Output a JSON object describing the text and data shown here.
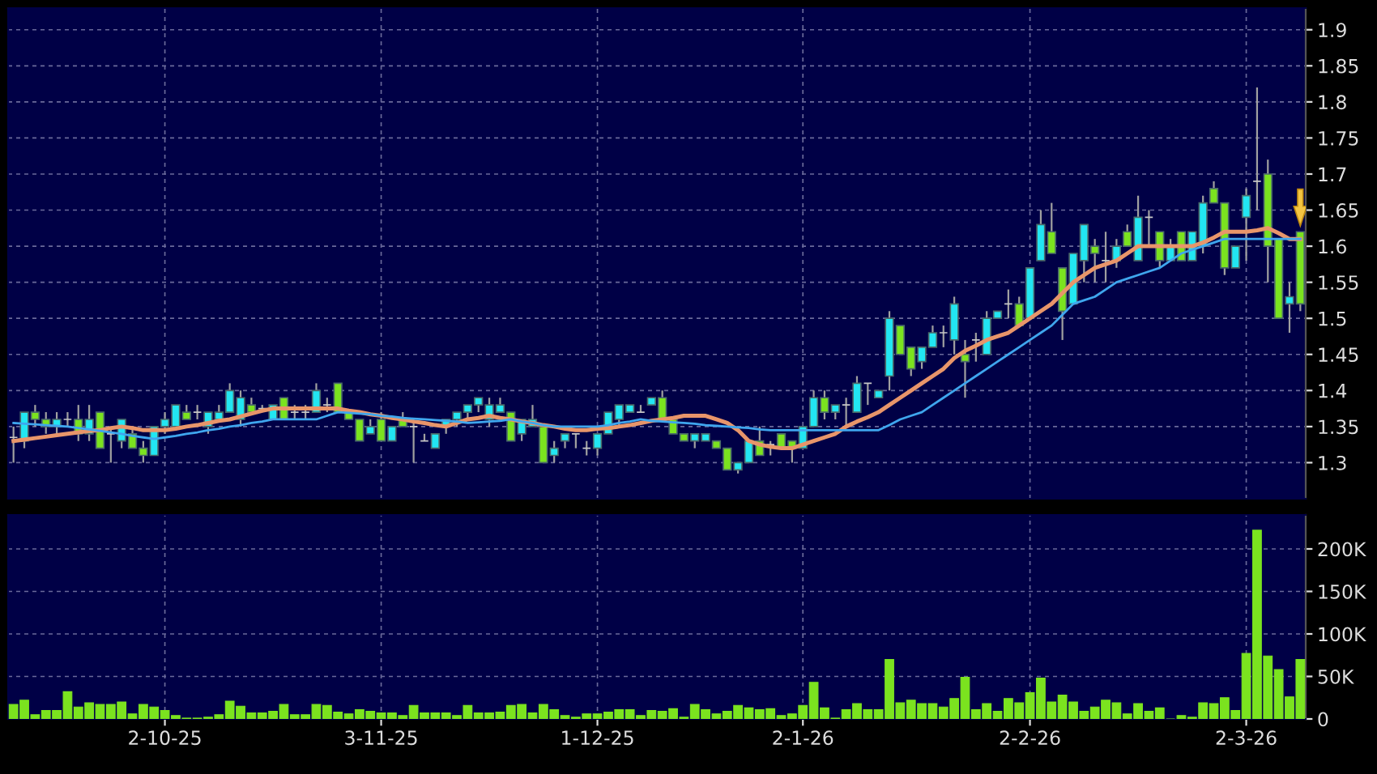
{
  "chart_data": [
    {
      "type": "candlestick",
      "categories": [
        null,
        null,
        null,
        null,
        null,
        null,
        null,
        null,
        null,
        null,
        null,
        null,
        null,
        null,
        null,
        null,
        null,
        null,
        null,
        null,
        null,
        null,
        null,
        null,
        null,
        null,
        null,
        null,
        null,
        null,
        null,
        null,
        null,
        null,
        null,
        null,
        null,
        null,
        null,
        null,
        null,
        null,
        null,
        null,
        null,
        null,
        null,
        null,
        null,
        null,
        null,
        null,
        null,
        null,
        null,
        null,
        null,
        null,
        null,
        null,
        null,
        null,
        null,
        null,
        null,
        null,
        null,
        null,
        null,
        null,
        null,
        null,
        null,
        null,
        null,
        null,
        null,
        null,
        null,
        null,
        null,
        null,
        null,
        null,
        null,
        null,
        null,
        null,
        null,
        null,
        null,
        null,
        null,
        null,
        null,
        null,
        null,
        null,
        null,
        null,
        null,
        null,
        null,
        null,
        null,
        null,
        null,
        null,
        null,
        null,
        null,
        null,
        null,
        null,
        null,
        null,
        null,
        null,
        null,
        null
      ],
      "tick_labels": "y",
      "ohlc": [
        [
          1.335,
          1.35,
          1.3,
          1.335
        ],
        [
          1.33,
          1.37,
          1.32,
          1.37
        ],
        [
          1.37,
          1.38,
          1.35,
          1.36
        ],
        [
          1.36,
          1.37,
          1.34,
          1.35
        ],
        [
          1.35,
          1.37,
          1.34,
          1.36
        ],
        [
          1.36,
          1.37,
          1.35,
          1.36
        ],
        [
          1.36,
          1.38,
          1.33,
          1.34
        ],
        [
          1.34,
          1.38,
          1.33,
          1.36
        ],
        [
          1.37,
          1.37,
          1.32,
          1.32
        ],
        [
          1.34,
          1.35,
          1.3,
          1.34
        ],
        [
          1.33,
          1.36,
          1.32,
          1.36
        ],
        [
          1.34,
          1.35,
          1.32,
          1.32
        ],
        [
          1.32,
          1.33,
          1.3,
          1.31
        ],
        [
          1.31,
          1.35,
          1.31,
          1.35
        ],
        [
          1.35,
          1.37,
          1.34,
          1.36
        ],
        [
          1.35,
          1.38,
          1.35,
          1.38
        ],
        [
          1.37,
          1.38,
          1.36,
          1.36
        ],
        [
          1.37,
          1.38,
          1.36,
          1.37
        ],
        [
          1.35,
          1.37,
          1.34,
          1.37
        ],
        [
          1.36,
          1.38,
          1.36,
          1.37
        ],
        [
          1.37,
          1.41,
          1.37,
          1.4
        ],
        [
          1.36,
          1.4,
          1.35,
          1.39
        ],
        [
          1.38,
          1.39,
          1.37,
          1.37
        ],
        [
          1.375,
          1.38,
          1.37,
          1.375
        ],
        [
          1.36,
          1.38,
          1.36,
          1.38
        ],
        [
          1.39,
          1.39,
          1.36,
          1.36
        ],
        [
          1.37,
          1.38,
          1.36,
          1.37
        ],
        [
          1.37,
          1.38,
          1.36,
          1.37
        ],
        [
          1.37,
          1.41,
          1.37,
          1.4
        ],
        [
          1.38,
          1.39,
          1.37,
          1.38
        ],
        [
          1.41,
          1.41,
          1.37,
          1.37
        ],
        [
          1.37,
          1.37,
          1.36,
          1.36
        ],
        [
          1.36,
          1.36,
          1.33,
          1.33
        ],
        [
          1.34,
          1.36,
          1.34,
          1.35
        ],
        [
          1.36,
          1.37,
          1.33,
          1.33
        ],
        [
          1.33,
          1.35,
          1.33,
          1.35
        ],
        [
          1.36,
          1.37,
          1.35,
          1.35
        ],
        [
          1.35,
          1.36,
          1.3,
          1.35
        ],
        [
          1.33,
          1.34,
          1.33,
          1.33
        ],
        [
          1.32,
          1.34,
          1.32,
          1.34
        ],
        [
          1.35,
          1.36,
          1.34,
          1.36
        ],
        [
          1.36,
          1.37,
          1.35,
          1.37
        ],
        [
          1.37,
          1.38,
          1.36,
          1.38
        ],
        [
          1.38,
          1.39,
          1.37,
          1.39
        ],
        [
          1.36,
          1.39,
          1.35,
          1.38
        ],
        [
          1.37,
          1.39,
          1.37,
          1.38
        ],
        [
          1.37,
          1.37,
          1.33,
          1.33
        ],
        [
          1.34,
          1.36,
          1.33,
          1.36
        ],
        [
          1.35,
          1.38,
          1.35,
          1.36
        ],
        [
          1.35,
          1.35,
          1.3,
          1.3
        ],
        [
          1.31,
          1.33,
          1.3,
          1.32
        ],
        [
          1.33,
          1.34,
          1.32,
          1.34
        ],
        [
          1.34,
          1.34,
          1.32,
          1.34
        ],
        [
          1.32,
          1.33,
          1.31,
          1.32
        ],
        [
          1.32,
          1.34,
          1.31,
          1.34
        ],
        [
          1.34,
          1.37,
          1.34,
          1.37
        ],
        [
          1.36,
          1.38,
          1.35,
          1.38
        ],
        [
          1.37,
          1.38,
          1.37,
          1.38
        ],
        [
          1.37,
          1.38,
          1.37,
          1.37
        ],
        [
          1.38,
          1.39,
          1.38,
          1.39
        ],
        [
          1.39,
          1.4,
          1.36,
          1.36
        ],
        [
          1.36,
          1.36,
          1.34,
          1.34
        ],
        [
          1.34,
          1.34,
          1.33,
          1.33
        ],
        [
          1.33,
          1.34,
          1.32,
          1.34
        ],
        [
          1.33,
          1.34,
          1.33,
          1.34
        ],
        [
          1.33,
          1.33,
          1.32,
          1.32
        ],
        [
          1.32,
          1.32,
          1.29,
          1.29
        ],
        [
          1.29,
          1.3,
          1.285,
          1.3
        ],
        [
          1.3,
          1.33,
          1.3,
          1.33
        ],
        [
          1.33,
          1.35,
          1.31,
          1.31
        ],
        [
          1.325,
          1.33,
          1.31,
          1.325
        ],
        [
          1.34,
          1.34,
          1.32,
          1.32
        ],
        [
          1.33,
          1.33,
          1.3,
          1.32
        ],
        [
          1.32,
          1.35,
          1.32,
          1.35
        ],
        [
          1.35,
          1.4,
          1.35,
          1.39
        ],
        [
          1.39,
          1.4,
          1.36,
          1.37
        ],
        [
          1.37,
          1.38,
          1.36,
          1.38
        ],
        [
          1.38,
          1.39,
          1.35,
          1.38
        ],
        [
          1.37,
          1.42,
          1.37,
          1.41
        ],
        [
          1.41,
          1.41,
          1.38,
          1.41
        ],
        [
          1.39,
          1.4,
          1.39,
          1.4
        ],
        [
          1.42,
          1.51,
          1.4,
          1.5
        ],
        [
          1.49,
          1.49,
          1.45,
          1.45
        ],
        [
          1.46,
          1.46,
          1.42,
          1.43
        ],
        [
          1.44,
          1.46,
          1.43,
          1.46
        ],
        [
          1.46,
          1.49,
          1.46,
          1.48
        ],
        [
          1.48,
          1.49,
          1.46,
          1.48
        ],
        [
          1.47,
          1.53,
          1.45,
          1.52
        ],
        [
          1.45,
          1.47,
          1.39,
          1.44
        ],
        [
          1.47,
          1.48,
          1.44,
          1.47
        ],
        [
          1.45,
          1.51,
          1.45,
          1.5
        ],
        [
          1.5,
          1.51,
          1.5,
          1.51
        ],
        [
          1.52,
          1.54,
          1.5,
          1.52
        ],
        [
          1.52,
          1.53,
          1.49,
          1.49
        ],
        [
          1.5,
          1.57,
          1.5,
          1.57
        ],
        [
          1.58,
          1.65,
          1.58,
          1.63
        ],
        [
          1.62,
          1.66,
          1.59,
          1.59
        ],
        [
          1.57,
          1.57,
          1.47,
          1.51
        ],
        [
          1.52,
          1.59,
          1.52,
          1.59
        ],
        [
          1.58,
          1.63,
          1.55,
          1.63
        ],
        [
          1.6,
          1.61,
          1.55,
          1.59
        ],
        [
          1.58,
          1.62,
          1.55,
          1.58
        ],
        [
          1.58,
          1.61,
          1.57,
          1.6
        ],
        [
          1.62,
          1.63,
          1.6,
          1.6
        ],
        [
          1.58,
          1.67,
          1.58,
          1.64
        ],
        [
          1.64,
          1.65,
          1.6,
          1.64
        ],
        [
          1.62,
          1.62,
          1.57,
          1.58
        ],
        [
          1.58,
          1.61,
          1.58,
          1.6
        ],
        [
          1.62,
          1.62,
          1.58,
          1.58
        ],
        [
          1.58,
          1.62,
          1.58,
          1.62
        ],
        [
          1.6,
          1.67,
          1.59,
          1.66
        ],
        [
          1.68,
          1.69,
          1.66,
          1.66
        ],
        [
          1.66,
          1.66,
          1.56,
          1.57
        ],
        [
          1.57,
          1.6,
          1.57,
          1.6
        ],
        [
          1.64,
          1.68,
          1.58,
          1.67
        ],
        [
          1.69,
          1.82,
          1.65,
          1.69
        ],
        [
          1.7,
          1.72,
          1.55,
          1.6
        ],
        [
          1.61,
          1.61,
          1.5,
          1.5
        ],
        [
          1.52,
          1.55,
          1.48,
          1.53
        ],
        [
          1.62,
          1.62,
          1.51,
          1.52
        ]
      ],
      "colors": [
        "#c8c8c8",
        "#22e6f2",
        "#7be31f",
        "#7be31f",
        "#22e6f2",
        "#c8c8c8",
        "#7be31f",
        "#22e6f2",
        "#7be31f",
        "#c8c8c8",
        "#22e6f2",
        "#7be31f",
        "#7be31f",
        "#22e6f2",
        "#22e6f2",
        "#22e6f2",
        "#7be31f",
        "#c8c8c8",
        "#22e6f2",
        "#22e6f2",
        "#22e6f2",
        "#22e6f2",
        "#7be31f",
        "#c8c8c8",
        "#22e6f2",
        "#7be31f",
        "#c8c8c8",
        "#c8c8c8",
        "#22e6f2",
        "#c8c8c8",
        "#7be31f",
        "#7be31f",
        "#7be31f",
        "#22e6f2",
        "#7be31f",
        "#22e6f2",
        "#7be31f",
        "#c8c8c8",
        "#c8c8c8",
        "#22e6f2",
        "#22e6f2",
        "#22e6f2",
        "#22e6f2",
        "#22e6f2",
        "#22e6f2",
        "#22e6f2",
        "#7be31f",
        "#22e6f2",
        "#22e6f2",
        "#7be31f",
        "#22e6f2",
        "#22e6f2",
        "#c8c8c8",
        "#c8c8c8",
        "#22e6f2",
        "#22e6f2",
        "#22e6f2",
        "#22e6f2",
        "#c8c8c8",
        "#22e6f2",
        "#7be31f",
        "#7be31f",
        "#7be31f",
        "#22e6f2",
        "#22e6f2",
        "#7be31f",
        "#7be31f",
        "#22e6f2",
        "#22e6f2",
        "#7be31f",
        "#c8c8c8",
        "#7be31f",
        "#7be31f",
        "#22e6f2",
        "#22e6f2",
        "#7be31f",
        "#22e6f2",
        "#c8c8c8",
        "#22e6f2",
        "#c8c8c8",
        "#22e6f2",
        "#22e6f2",
        "#7be31f",
        "#7be31f",
        "#22e6f2",
        "#22e6f2",
        "#c8c8c8",
        "#22e6f2",
        "#7be31f",
        "#c8c8c8",
        "#22e6f2",
        "#22e6f2",
        "#c8c8c8",
        "#7be31f",
        "#22e6f2",
        "#22e6f2",
        "#7be31f",
        "#7be31f",
        "#22e6f2",
        "#22e6f2",
        "#7be31f",
        "#c8c8c8",
        "#22e6f2",
        "#7be31f",
        "#22e6f2",
        "#c8c8c8",
        "#7be31f",
        "#22e6f2",
        "#7be31f",
        "#22e6f2",
        "#22e6f2",
        "#7be31f",
        "#7be31f",
        "#22e6f2",
        "#22e6f2",
        "#c8c8c8",
        "#7be31f",
        "#7be31f",
        "#22e6f2",
        "#7be31f"
      ],
      "series": [
        {
          "type": "line",
          "color": "#e8956a",
          "values": [
            1.33,
            1.332,
            1.334,
            1.336,
            1.338,
            1.34,
            1.342,
            1.344,
            1.345,
            1.348,
            1.35,
            1.348,
            1.345,
            1.345,
            1.345,
            1.347,
            1.35,
            1.352,
            1.355,
            1.358,
            1.36,
            1.364,
            1.368,
            1.372,
            1.375,
            1.375,
            1.375,
            1.375,
            1.375,
            1.375,
            1.375,
            1.372,
            1.37,
            1.367,
            1.365,
            1.362,
            1.36,
            1.357,
            1.355,
            1.352,
            1.35,
            1.355,
            1.36,
            1.362,
            1.365,
            1.362,
            1.36,
            1.357,
            1.355,
            1.352,
            1.35,
            1.347,
            1.345,
            1.345,
            1.347,
            1.348,
            1.35,
            1.352,
            1.355,
            1.358,
            1.36,
            1.362,
            1.365,
            1.365,
            1.365,
            1.36,
            1.355,
            1.345,
            1.33,
            1.325,
            1.322,
            1.32,
            1.32,
            1.325,
            1.33,
            1.335,
            1.34,
            1.35,
            1.357,
            1.363,
            1.37,
            1.38,
            1.39,
            1.4,
            1.41,
            1.42,
            1.43,
            1.445,
            1.455,
            1.462,
            1.47,
            1.475,
            1.48,
            1.49,
            1.5,
            1.51,
            1.52,
            1.535,
            1.55,
            1.56,
            1.57,
            1.575,
            1.58,
            1.59,
            1.6,
            1.6,
            1.6,
            1.6,
            1.6,
            1.6,
            1.605,
            1.612,
            1.62,
            1.62,
            1.62,
            1.622,
            1.625,
            1.618,
            1.61,
            1.61
          ]
        },
        {
          "type": "line",
          "color": "#3fa6ee",
          "values": [
            1.355,
            1.354,
            1.353,
            1.352,
            1.351,
            1.35,
            1.348,
            1.346,
            1.344,
            1.342,
            1.34,
            1.337,
            1.335,
            1.333,
            1.335,
            1.337,
            1.34,
            1.342,
            1.345,
            1.347,
            1.35,
            1.352,
            1.355,
            1.357,
            1.36,
            1.36,
            1.36,
            1.36,
            1.36,
            1.365,
            1.37,
            1.369,
            1.368,
            1.367,
            1.365,
            1.364,
            1.362,
            1.361,
            1.36,
            1.359,
            1.358,
            1.357,
            1.355,
            1.356,
            1.357,
            1.358,
            1.36,
            1.357,
            1.355,
            1.352,
            1.35,
            1.35,
            1.35,
            1.35,
            1.35,
            1.352,
            1.355,
            1.357,
            1.36,
            1.358,
            1.357,
            1.356,
            1.355,
            1.354,
            1.352,
            1.351,
            1.35,
            1.349,
            1.348,
            1.346,
            1.345,
            1.345,
            1.345,
            1.345,
            1.345,
            1.345,
            1.345,
            1.345,
            1.345,
            1.345,
            1.345,
            1.352,
            1.36,
            1.365,
            1.37,
            1.38,
            1.39,
            1.4,
            1.41,
            1.42,
            1.43,
            1.44,
            1.45,
            1.46,
            1.47,
            1.48,
            1.49,
            1.505,
            1.52,
            1.525,
            1.53,
            1.54,
            1.55,
            1.555,
            1.56,
            1.565,
            1.57,
            1.58,
            1.59,
            1.595,
            1.6,
            1.605,
            1.61,
            1.61,
            1.61,
            1.61,
            1.61,
            1.61,
            1.61,
            1.61
          ]
        }
      ],
      "ylim": [
        1.25,
        1.93
      ],
      "yticks": [
        1.3,
        1.35,
        1.4,
        1.45,
        1.5,
        1.55,
        1.6,
        1.65,
        1.7,
        1.75,
        1.8,
        1.85,
        1.9
      ],
      "grid": true
    },
    {
      "type": "bar",
      "categories": [
        null,
        null,
        null,
        null,
        null,
        null,
        null,
        null,
        null,
        null,
        null,
        null,
        null,
        null,
        "2-10-25",
        null,
        null,
        null,
        null,
        null,
        null,
        null,
        null,
        null,
        null,
        null,
        null,
        null,
        null,
        null,
        null,
        null,
        null,
        null,
        "3-11-25",
        null,
        null,
        null,
        null,
        null,
        null,
        null,
        null,
        null,
        null,
        null,
        null,
        null,
        null,
        null,
        null,
        null,
        null,
        null,
        "1-12-25",
        null,
        null,
        null,
        null,
        null,
        null,
        null,
        null,
        null,
        null,
        null,
        null,
        null,
        null,
        null,
        null,
        null,
        null,
        "2-1-26",
        null,
        null,
        null,
        null,
        null,
        null,
        null,
        null,
        null,
        null,
        null,
        null,
        null,
        null,
        null,
        null,
        null,
        null,
        null,
        null,
        "2-2-26",
        null,
        null,
        null,
        null,
        null,
        null,
        null,
        null,
        null,
        null,
        null,
        null,
        null,
        null,
        null,
        null,
        null,
        null,
        null,
        "2-3-26",
        null,
        null,
        null,
        null,
        null
      ],
      "values": [
        17000,
        22000,
        5000,
        10000,
        10000,
        32000,
        14000,
        19000,
        17000,
        17000,
        20000,
        6000,
        17000,
        14000,
        10000,
        4000,
        1000,
        1000,
        2000,
        5000,
        21000,
        15000,
        7000,
        7000,
        9000,
        17000,
        5000,
        5000,
        17000,
        16000,
        8000,
        6000,
        11000,
        9000,
        7000,
        7000,
        4000,
        16000,
        7000,
        7000,
        7000,
        4000,
        16000,
        7000,
        7000,
        8000,
        16000,
        17000,
        7000,
        17000,
        11000,
        4000,
        2000,
        6000,
        6000,
        8000,
        11000,
        11000,
        4000,
        10000,
        9000,
        12000,
        2000,
        17000,
        11000,
        6000,
        9000,
        16000,
        13000,
        11000,
        12000,
        4000,
        6000,
        16000,
        43000,
        13000,
        1000,
        11000,
        18000,
        11000,
        11000,
        70000,
        19000,
        22000,
        18000,
        18000,
        14000,
        24000,
        49000,
        11000,
        18000,
        9000,
        24000,
        19000,
        31000,
        48000,
        20000,
        28000,
        20000,
        9000,
        14000,
        22000,
        19000,
        6000,
        18000,
        9000,
        13000,
        0,
        4000,
        2000,
        19000,
        18000,
        25000,
        10000,
        77000,
        222000,
        74000,
        58000,
        26000,
        70000
      ],
      "color": "#7be31f",
      "ylim": [
        0,
        240000
      ],
      "yticks": [
        0,
        {
          "value": 50000,
          "label": "50K"
        },
        {
          "value": 100000,
          "label": "100K"
        },
        {
          "value": 150000,
          "label": "150K"
        },
        {
          "value": 200000,
          "label": "200K"
        }
      ],
      "grid": true
    }
  ]
}
